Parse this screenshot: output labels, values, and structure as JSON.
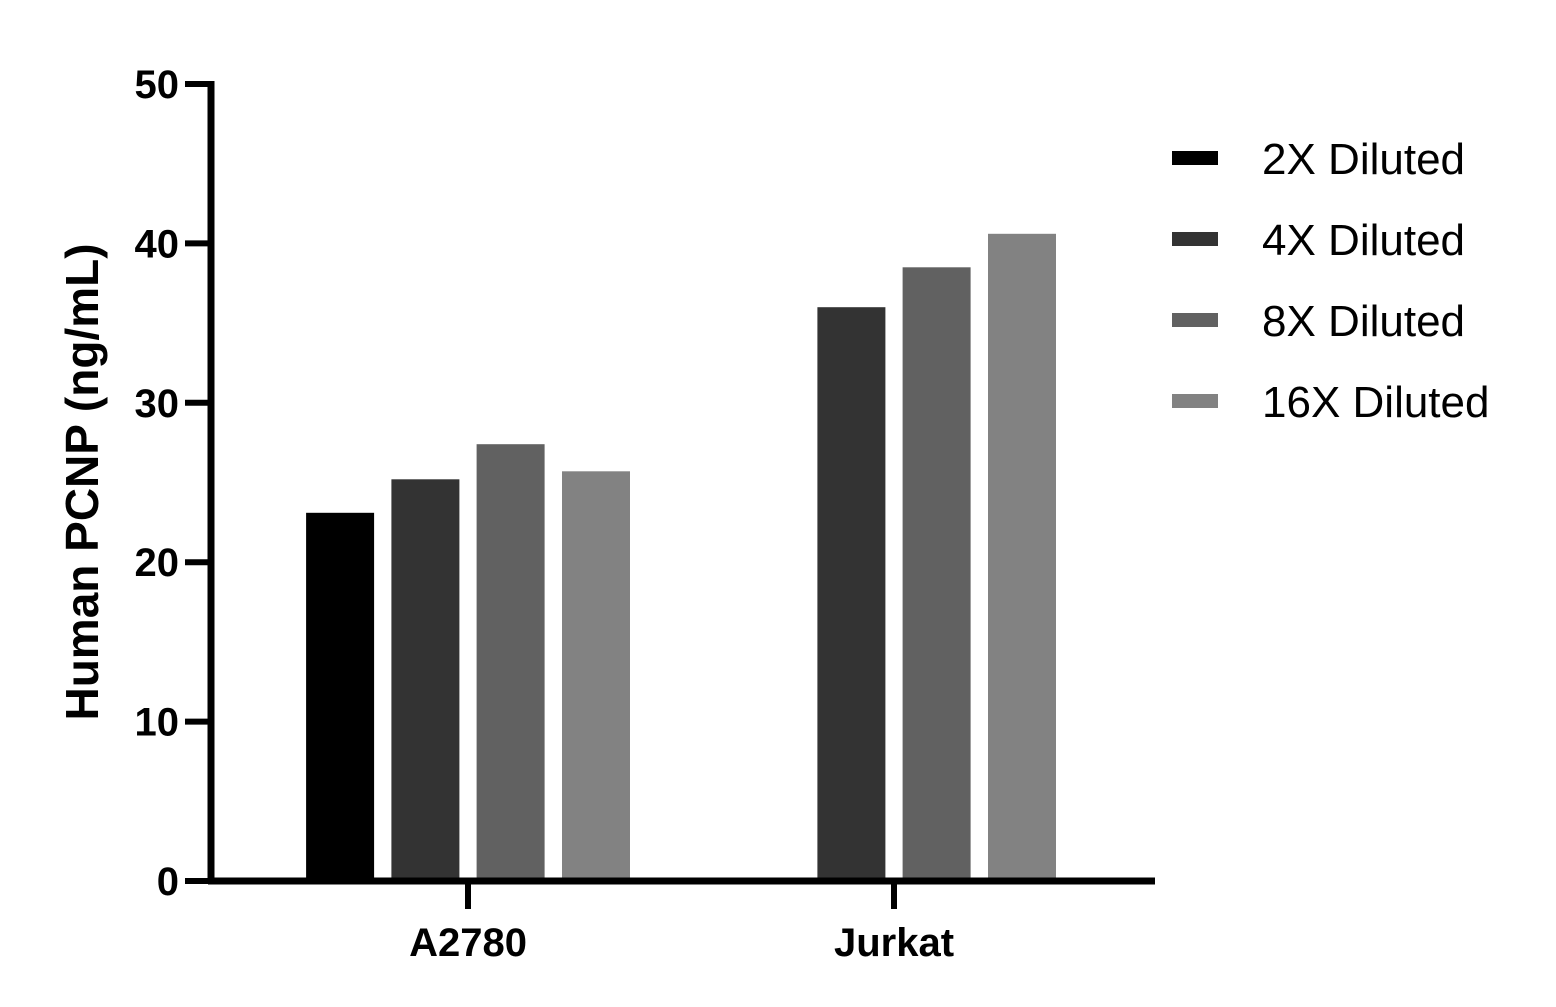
{
  "chart_data": {
    "type": "bar",
    "title": "",
    "xlabel": "",
    "ylabel": "Human PCNP  (ng/mL)",
    "ylim": [
      0,
      50
    ],
    "yticks": [
      0,
      10,
      20,
      30,
      40,
      50
    ],
    "categories": [
      "A2780",
      "Jurkat"
    ],
    "series": [
      {
        "name": "2X Diluted",
        "color": "#000000",
        "values": [
          23.1,
          null
        ]
      },
      {
        "name": "4X Diluted",
        "color": "#333333",
        "values": [
          25.2,
          36.0
        ]
      },
      {
        "name": "8X Diluted",
        "color": "#616161",
        "values": [
          27.4,
          38.5
        ]
      },
      {
        "name": "16X Diluted",
        "color": "#828282",
        "values": [
          25.7,
          40.6
        ]
      }
    ],
    "legend": "right",
    "grid": false
  }
}
